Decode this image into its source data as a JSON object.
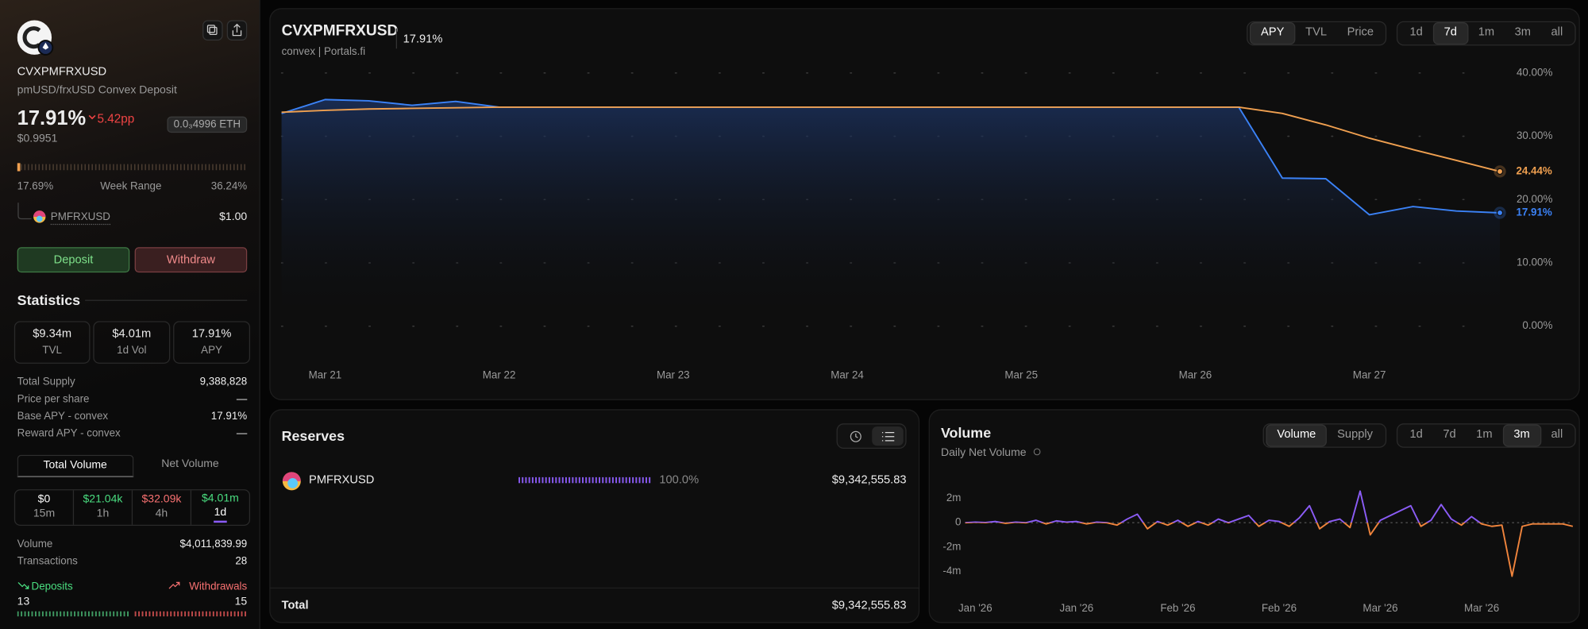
{
  "sidebar": {
    "symbol": "CVXPMFRXUSD",
    "description": "pmUSD/frxUSD Convex Deposit",
    "apy": "17.91%",
    "apy_change": "5.42pp",
    "price": "$0.9951",
    "eth_price": "0.0₃4996 ETH",
    "week_range": {
      "low": "17.69%",
      "label": "Week Range",
      "high": "36.24%"
    },
    "underlying": {
      "symbol": "PMFRXUSD",
      "price": "$1.00"
    },
    "actions": [
      "Deposit",
      "Withdraw"
    ],
    "statistics": {
      "title": "Statistics",
      "cards": [
        {
          "value": "$9.34m",
          "label": "TVL"
        },
        {
          "value": "$4.01m",
          "label": "1d Vol"
        },
        {
          "value": "17.91%",
          "label": "APY"
        }
      ],
      "rows": [
        {
          "label": "Total Supply",
          "value": "9,388,828"
        },
        {
          "label": "Price per share",
          "value": "—"
        },
        {
          "label": "Base APY - convex",
          "value": "17.91%"
        },
        {
          "label": "Reward APY - convex",
          "value": "—"
        }
      ]
    },
    "volume_tabs": {
      "items": [
        "Total Volume",
        "Net Volume"
      ],
      "active": 0
    },
    "periods": {
      "items": [
        {
          "value": "$0",
          "label": "15m",
          "color": "#ffffff"
        },
        {
          "value": "$21.04k",
          "label": "1h",
          "color": "#4ade80"
        },
        {
          "value": "$32.09k",
          "label": "4h",
          "color": "#f87171"
        },
        {
          "value": "$4.01m",
          "label": "1d",
          "color": "#4ade80"
        }
      ],
      "active": 3
    },
    "summary": [
      {
        "label": "Volume",
        "value": "$4,011,839.99"
      },
      {
        "label": "Transactions",
        "value": "28"
      }
    ],
    "flows": {
      "deposits": "Deposits",
      "withdrawals": "Withdrawals",
      "deposit_count": "13",
      "withdrawal_count": "15"
    }
  },
  "main_panel": {
    "tabs": {
      "items": [
        "APY",
        "TVL",
        "Price"
      ],
      "active": 0
    },
    "periods": {
      "items": [
        "1d",
        "7d",
        "1m",
        "3m",
        "all"
      ],
      "active": 1
    }
  },
  "reserves": {
    "title": "Reserves",
    "rows": [
      {
        "token": "PMFRXUSD",
        "share": "100.0%",
        "value": "$9,342,555.83"
      }
    ],
    "total_label": "Total",
    "total_value": "$9,342,555.83"
  },
  "volume_panel": {
    "tabs": {
      "items": [
        "Volume",
        "Supply"
      ],
      "active": 0
    },
    "periods": {
      "items": [
        "1d",
        "7d",
        "1m",
        "3m",
        "all"
      ],
      "active": 3
    }
  },
  "chart_data": [
    {
      "type": "line",
      "title": "CVXPMFRXUSD",
      "subtitle": "convex | Portals.fi",
      "current": "17.91%",
      "categories": [
        null,
        "Mar 21",
        null,
        null,
        null,
        "Mar 22",
        null,
        null,
        null,
        "Mar 23",
        null,
        null,
        null,
        "Mar 24",
        null,
        null,
        null,
        "Mar 25",
        null,
        null,
        null,
        "Mar 26",
        null,
        null,
        null,
        "Mar 27",
        null,
        null,
        null
      ],
      "series": [
        {
          "color": "#3b82f6",
          "values": [
            33.6,
            35.8,
            35.6,
            34.9,
            35.5,
            34.6,
            34.6,
            34.6,
            34.6,
            34.6,
            34.6,
            34.6,
            34.6,
            34.6,
            34.6,
            34.6,
            34.6,
            34.6,
            34.6,
            34.6,
            34.6,
            34.6,
            34.6,
            23.4,
            23.3,
            17.6,
            18.9,
            18.2,
            17.91
          ],
          "end_label": "17.91%"
        },
        {
          "color": "#f0a050",
          "values": [
            33.8,
            34.1,
            34.3,
            34.4,
            34.5,
            34.6,
            34.6,
            34.6,
            34.6,
            34.6,
            34.6,
            34.6,
            34.6,
            34.6,
            34.6,
            34.6,
            34.6,
            34.6,
            34.6,
            34.6,
            34.6,
            34.6,
            34.6,
            33.6,
            31.8,
            29.7,
            27.9,
            26.2,
            24.44
          ],
          "end_label": "24.44%"
        }
      ],
      "ylim": [
        0,
        40
      ],
      "yticks": [
        {
          "value": 0,
          "label": "0.00%"
        },
        {
          "value": 10,
          "label": "10.00%"
        },
        {
          "value": 20,
          "label": "20.00%"
        },
        {
          "value": 30,
          "label": "30.00%"
        },
        {
          "value": 40,
          "label": "40.00%"
        }
      ],
      "grid": true
    },
    {
      "type": "line",
      "title": "Volume",
      "subtitle": "Daily Net Volume",
      "categories": [
        null,
        "Jan '26",
        null,
        null,
        null,
        null,
        null,
        null,
        null,
        null,
        null,
        "Jan '26",
        null,
        null,
        null,
        null,
        null,
        null,
        null,
        null,
        null,
        "Feb '26",
        null,
        null,
        null,
        null,
        null,
        null,
        null,
        null,
        null,
        "Feb '26",
        null,
        null,
        null,
        null,
        null,
        null,
        null,
        null,
        null,
        "Mar '26",
        null,
        null,
        null,
        null,
        null,
        null,
        null,
        null,
        null,
        "Mar '26",
        null,
        null,
        null,
        null,
        null,
        null,
        null,
        null,
        null
      ],
      "series": [
        {
          "color": "#8b5cf6",
          "negative_color": "#f0843c",
          "values": [
            0,
            50000,
            20000,
            100000,
            -50000,
            50000,
            0,
            200000,
            -100000,
            150000,
            50000,
            100000,
            -100000,
            50000,
            0,
            -200000,
            300000,
            700000,
            -500000,
            100000,
            -200000,
            200000,
            -300000,
            100000,
            -200000,
            300000,
            0,
            300000,
            600000,
            -300000,
            200000,
            100000,
            -300000,
            400000,
            1400000,
            -500000,
            100000,
            300000,
            -400000,
            2600000,
            -1000000,
            200000,
            600000,
            1000000,
            1400000,
            -300000,
            200000,
            1500000,
            300000,
            -200000,
            500000,
            -100000,
            -300000,
            -200000,
            -4400000,
            -300000,
            -100000,
            -100000,
            -100000,
            -100000,
            -300000
          ]
        }
      ],
      "ylim": [
        -5000000,
        3000000
      ],
      "yticks": [
        {
          "value": 2000000,
          "label": "2m"
        },
        0,
        {
          "value": -2000000,
          "label": "-2m"
        },
        {
          "value": -4000000,
          "label": "-4m"
        }
      ],
      "grid": false
    }
  ]
}
